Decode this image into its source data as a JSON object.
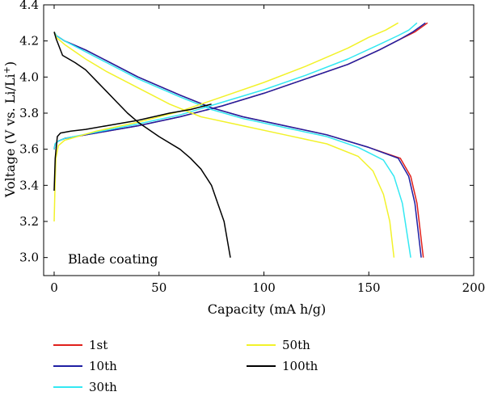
{
  "chart_data": {
    "type": "line",
    "xlabel": "Capacity (mA h/g)",
    "ylabel": "Voltage (V vs. Li/Li",
    "ylabel_sup": "+",
    "ylabel_end": ")",
    "xlim": [
      -5,
      200
    ],
    "ylim": [
      2.9,
      4.4
    ],
    "xticks": [
      0,
      50,
      100,
      150,
      200
    ],
    "yticks": [
      3.0,
      3.2,
      3.4,
      3.6,
      3.8,
      4.0,
      4.2,
      4.4
    ],
    "ytick_labels": [
      "3.0",
      "3.2",
      "3.4",
      "3.6",
      "3.8",
      "4.0",
      "4.2",
      "4.4"
    ],
    "annotation": "Blade coating",
    "legend_position": "below",
    "series": [
      {
        "name": "1st",
        "color": "#e0201b",
        "charge": [
          [
            0,
            3.6
          ],
          [
            0.5,
            3.63
          ],
          [
            2,
            3.645
          ],
          [
            5,
            3.66
          ],
          [
            20,
            3.69
          ],
          [
            40,
            3.73
          ],
          [
            60,
            3.78
          ],
          [
            80,
            3.84
          ],
          [
            100,
            3.91
          ],
          [
            120,
            3.99
          ],
          [
            140,
            4.07
          ],
          [
            155,
            4.15
          ],
          [
            165,
            4.21
          ],
          [
            172,
            4.25
          ],
          [
            178,
            4.3
          ]
        ],
        "discharge": [
          [
            0,
            4.25
          ],
          [
            1,
            4.23
          ],
          [
            5,
            4.2
          ],
          [
            15,
            4.15
          ],
          [
            25,
            4.09
          ],
          [
            40,
            4.0
          ],
          [
            60,
            3.9
          ],
          [
            75,
            3.83
          ],
          [
            90,
            3.78
          ],
          [
            110,
            3.73
          ],
          [
            130,
            3.68
          ],
          [
            150,
            3.61
          ],
          [
            165,
            3.55
          ],
          [
            170,
            3.45
          ],
          [
            173,
            3.3
          ],
          [
            176,
            3.0
          ]
        ]
      },
      {
        "name": "10th",
        "color": "#1f1fa3",
        "charge": [
          [
            0,
            3.6
          ],
          [
            0.5,
            3.63
          ],
          [
            2,
            3.645
          ],
          [
            5,
            3.66
          ],
          [
            20,
            3.69
          ],
          [
            40,
            3.73
          ],
          [
            60,
            3.78
          ],
          [
            80,
            3.84
          ],
          [
            100,
            3.91
          ],
          [
            120,
            3.99
          ],
          [
            140,
            4.07
          ],
          [
            155,
            4.15
          ],
          [
            165,
            4.21
          ],
          [
            171,
            4.25
          ],
          [
            177,
            4.3
          ]
        ],
        "discharge": [
          [
            0,
            4.25
          ],
          [
            1,
            4.23
          ],
          [
            5,
            4.2
          ],
          [
            15,
            4.15
          ],
          [
            25,
            4.09
          ],
          [
            40,
            4.0
          ],
          [
            60,
            3.9
          ],
          [
            75,
            3.83
          ],
          [
            90,
            3.78
          ],
          [
            110,
            3.73
          ],
          [
            130,
            3.68
          ],
          [
            150,
            3.61
          ],
          [
            164,
            3.55
          ],
          [
            169,
            3.45
          ],
          [
            172,
            3.3
          ],
          [
            175,
            3.0
          ]
        ]
      },
      {
        "name": "30th",
        "color": "#33e8f2",
        "charge": [
          [
            0,
            3.6
          ],
          [
            0.5,
            3.63
          ],
          [
            2,
            3.645
          ],
          [
            5,
            3.66
          ],
          [
            20,
            3.695
          ],
          [
            40,
            3.74
          ],
          [
            60,
            3.79
          ],
          [
            80,
            3.86
          ],
          [
            100,
            3.93
          ],
          [
            120,
            4.01
          ],
          [
            140,
            4.1
          ],
          [
            155,
            4.18
          ],
          [
            164,
            4.23
          ],
          [
            169,
            4.26
          ],
          [
            173,
            4.3
          ]
        ],
        "discharge": [
          [
            0,
            4.25
          ],
          [
            1,
            4.23
          ],
          [
            5,
            4.2
          ],
          [
            15,
            4.14
          ],
          [
            25,
            4.08
          ],
          [
            40,
            3.99
          ],
          [
            60,
            3.89
          ],
          [
            75,
            3.82
          ],
          [
            90,
            3.77
          ],
          [
            110,
            3.72
          ],
          [
            130,
            3.67
          ],
          [
            145,
            3.61
          ],
          [
            157,
            3.54
          ],
          [
            162,
            3.45
          ],
          [
            166,
            3.3
          ],
          [
            170,
            3.0
          ]
        ]
      },
      {
        "name": "50th",
        "color": "#f2f22a",
        "charge": [
          [
            0,
            3.2
          ],
          [
            0.3,
            3.35
          ],
          [
            0.8,
            3.55
          ],
          [
            2,
            3.62
          ],
          [
            5,
            3.65
          ],
          [
            20,
            3.7
          ],
          [
            40,
            3.75
          ],
          [
            60,
            3.81
          ],
          [
            80,
            3.89
          ],
          [
            100,
            3.97
          ],
          [
            120,
            4.06
          ],
          [
            140,
            4.16
          ],
          [
            150,
            4.22
          ],
          [
            158,
            4.26
          ],
          [
            164,
            4.3
          ]
        ],
        "discharge": [
          [
            0,
            4.25
          ],
          [
            1,
            4.22
          ],
          [
            5,
            4.18
          ],
          [
            15,
            4.1
          ],
          [
            25,
            4.03
          ],
          [
            40,
            3.94
          ],
          [
            55,
            3.85
          ],
          [
            70,
            3.78
          ],
          [
            90,
            3.73
          ],
          [
            110,
            3.68
          ],
          [
            130,
            3.63
          ],
          [
            145,
            3.56
          ],
          [
            152,
            3.48
          ],
          [
            157,
            3.35
          ],
          [
            160,
            3.2
          ],
          [
            162,
            3.0
          ]
        ]
      },
      {
        "name": "100th",
        "color": "#000000",
        "charge": [
          [
            0,
            3.37
          ],
          [
            0.5,
            3.55
          ],
          [
            1.5,
            3.67
          ],
          [
            3,
            3.69
          ],
          [
            8,
            3.7
          ],
          [
            15,
            3.71
          ],
          [
            25,
            3.73
          ],
          [
            40,
            3.76
          ],
          [
            55,
            3.8
          ],
          [
            65,
            3.82
          ],
          [
            75,
            3.85
          ]
        ],
        "discharge": [
          [
            0,
            4.25
          ],
          [
            1,
            4.21
          ],
          [
            4,
            4.12
          ],
          [
            10,
            4.08
          ],
          [
            15,
            4.04
          ],
          [
            20,
            3.98
          ],
          [
            25,
            3.92
          ],
          [
            30,
            3.86
          ],
          [
            35,
            3.8
          ],
          [
            40,
            3.75
          ],
          [
            50,
            3.67
          ],
          [
            60,
            3.6
          ],
          [
            65,
            3.55
          ],
          [
            70,
            3.49
          ],
          [
            75,
            3.4
          ],
          [
            78,
            3.3
          ],
          [
            81,
            3.2
          ],
          [
            84,
            3.0
          ]
        ]
      }
    ]
  }
}
